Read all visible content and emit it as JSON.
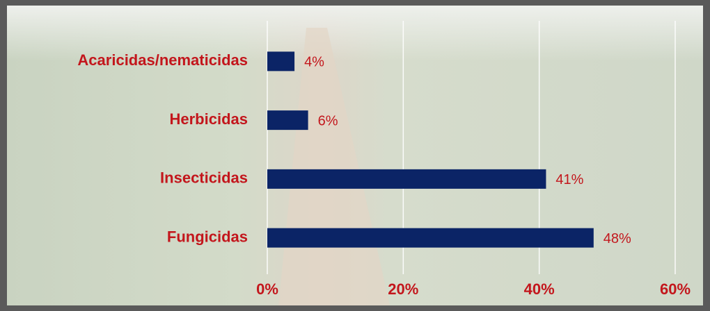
{
  "chart_data": {
    "type": "bar",
    "orientation": "horizontal",
    "categories": [
      "Acaricidas/nematicidas",
      "Herbicidas",
      "Insecticidas",
      "Fungicidas"
    ],
    "values": [
      4,
      6,
      41,
      48
    ],
    "value_labels": [
      "4%",
      "6%",
      "41%",
      "48%"
    ],
    "color": "#0b2466",
    "xlim": [
      0,
      60
    ],
    "xticks": [
      {
        "value": 0,
        "label": "0%"
      },
      {
        "value": 20,
        "label": "20%"
      },
      {
        "value": 40,
        "label": "40%"
      },
      {
        "value": 60,
        "label": "60%"
      }
    ],
    "grid": true
  }
}
